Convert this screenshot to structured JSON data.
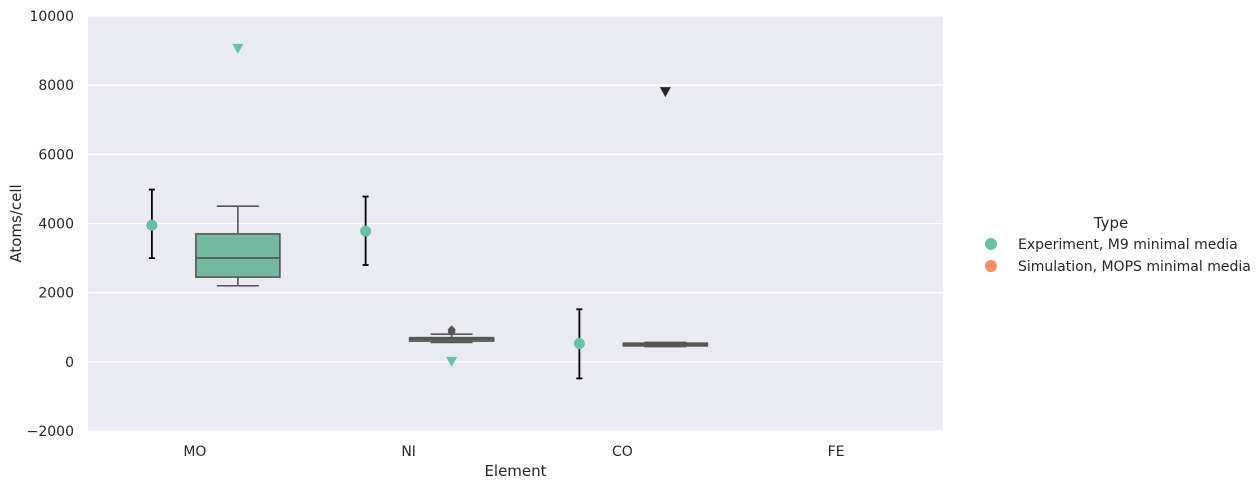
{
  "chart_data": {
    "type": "box",
    "xlabel": "Element",
    "ylabel": "Atoms/cell",
    "ylim": [
      -2000,
      10000
    ],
    "yticks": [
      -2000,
      0,
      2000,
      4000,
      6000,
      8000,
      10000
    ],
    "ytick_labels": [
      "−2000",
      "0",
      "2000",
      "4000",
      "6000",
      "8000",
      "10000"
    ],
    "categories": [
      "MO",
      "NI",
      "CO",
      "FE"
    ],
    "grid": true,
    "legend": {
      "title": "Type",
      "placement": "right",
      "entries": [
        {
          "label": "Experiment, M9 minimal media",
          "color": "#66c2a5"
        },
        {
          "label": "Simulation, MOPS minimal media",
          "color": "#fc8d62"
        }
      ]
    },
    "experiment_points": [
      {
        "category": "MO",
        "value": 3950,
        "err_low": 3000,
        "err_high": 4980
      },
      {
        "category": "NI",
        "value": 3780,
        "err_low": 2800,
        "err_high": 4780
      },
      {
        "category": "CO",
        "value": 530,
        "err_low": -480,
        "err_high": 1520
      }
    ],
    "boxes": [
      {
        "category": "MO",
        "whisker_low": 2200,
        "q1": 2450,
        "median": 3000,
        "q3": 3700,
        "whisker_high": 4500,
        "fliers": []
      },
      {
        "category": "NI",
        "whisker_low": 560,
        "q1": 600,
        "median": 650,
        "q3": 700,
        "whisker_high": 800,
        "fliers": [
          860,
          900,
          940
        ]
      },
      {
        "category": "CO",
        "whisker_low": 440,
        "q1": 460,
        "median": 500,
        "q3": 540,
        "whisker_high": 560,
        "fliers": []
      }
    ],
    "triangle_markers": [
      {
        "category": "MO",
        "value": 9050,
        "color": "#66c2a5"
      },
      {
        "category": "NI",
        "value": 0,
        "color": "#66c2a5"
      },
      {
        "category": "CO",
        "value": 7800,
        "color": "#262626"
      }
    ]
  },
  "colors": {
    "plot_background": "#eaeaf2",
    "grid": "#ffffff",
    "experiment": "#66c2a5",
    "simulation": "#fc8d62",
    "box_fill": "#75b8a1",
    "box_line": "#555555",
    "errorbar": "#000000",
    "text": "#262626"
  }
}
